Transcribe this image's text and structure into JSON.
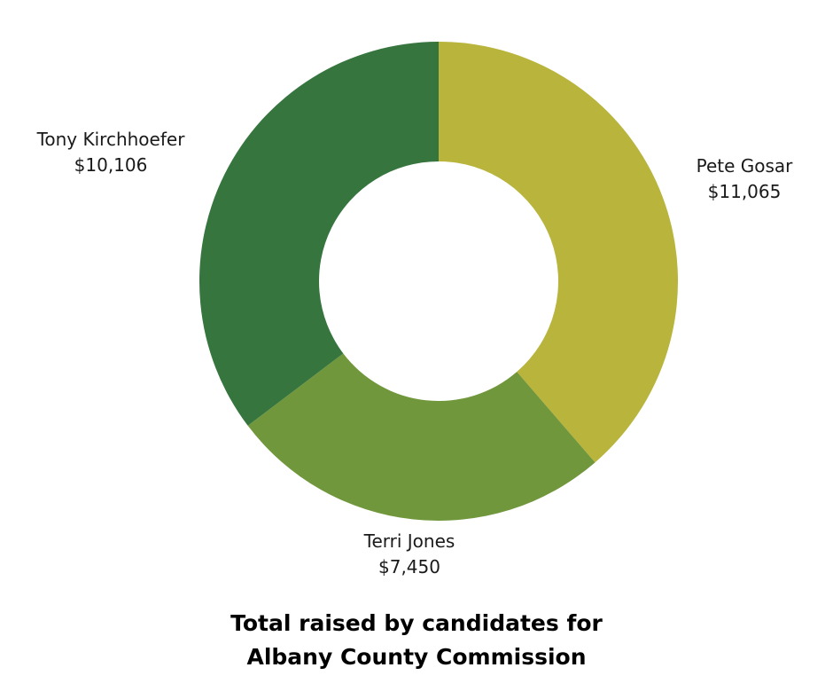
{
  "chart_data": {
    "type": "pie",
    "variant": "donut",
    "title_lines": [
      "Total raised by candidates for",
      "Albany County Commission"
    ],
    "slices": [
      {
        "name": "Pete Gosar",
        "value": 11065,
        "value_label": "$11,065",
        "color": "#b8b43c"
      },
      {
        "name": "Terri Jones",
        "value": 7450,
        "value_label": "$7,450",
        "color": "#71973c"
      },
      {
        "name": "Tony Kirchhoefer",
        "value": 10106,
        "value_label": "$10,106",
        "color": "#36753e"
      }
    ],
    "start_angle": "12 o'clock",
    "direction": "clockwise",
    "legend": "none"
  }
}
